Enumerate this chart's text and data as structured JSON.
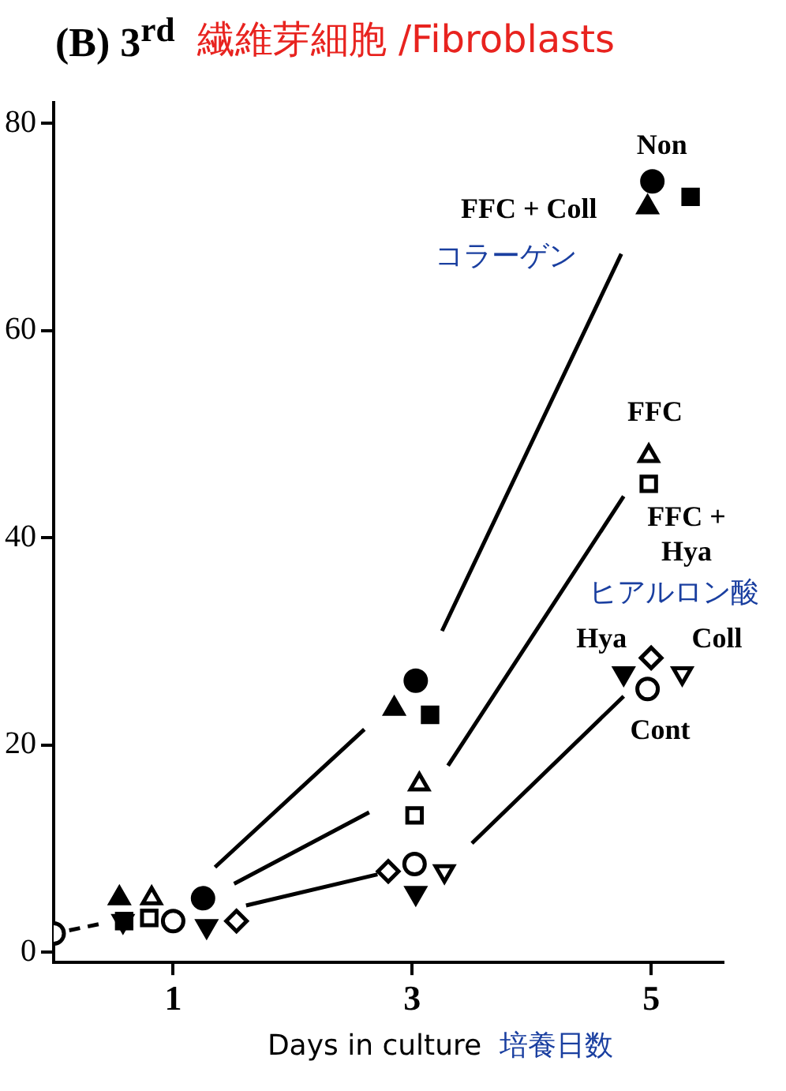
{
  "chart_data": {
    "type": "scatter",
    "title": "(B) 3$^{rd}$",
    "subtitle": "繊維芽細胞 /Fibroblasts",
    "xlabel": "Days in culture  培養日数",
    "xlim": [
      0,
      5.6
    ],
    "xticks": [
      1,
      3,
      5
    ],
    "ylim": [
      -1,
      82
    ],
    "yticks": [
      0,
      20,
      40,
      60,
      80
    ],
    "grid": false,
    "legend": false,
    "series": [
      {
        "type": "scatter",
        "name": "Non",
        "marker": "circle",
        "color": "#000000",
        "x": [
          1.25,
          3.03,
          5.01
        ],
        "values": [
          5.2,
          26.2,
          74.4
        ]
      },
      {
        "type": "scatter",
        "name": "FFC + Coll",
        "marker": "triangle",
        "color": "#000000",
        "x": [
          0.55,
          2.85,
          4.97
        ],
        "values": [
          5.2,
          23.5,
          71.9
        ]
      },
      {
        "type": "scatter",
        "marker": "square",
        "color": "#000000",
        "x": [
          0.59,
          3.15,
          5.33
        ],
        "values": [
          3.0,
          22.9,
          72.9
        ]
      },
      {
        "type": "scatter",
        "name": "FFC",
        "marker": "triangle-open",
        "color": "#000000",
        "x": [
          0.82,
          3.06,
          4.98
        ],
        "values": [
          5.2,
          16.2,
          47.9
        ]
      },
      {
        "type": "scatter",
        "name": "FFC + Hya",
        "marker": "square-open",
        "color": "#000000",
        "x": [
          0.8,
          3.02,
          4.98
        ],
        "values": [
          3.3,
          13.2,
          45.2
        ]
      },
      {
        "type": "scatter",
        "name": "Hya",
        "marker": "triangle-down",
        "color": "#000000",
        "x": [
          1.28,
          3.03,
          4.77
        ],
        "values": [
          2.5,
          5.7,
          26.9
        ]
      },
      {
        "type": "scatter",
        "marker": "diamond-open",
        "color": "#000000",
        "x": [
          1.53,
          2.8,
          5.0
        ],
        "values": [
          3.0,
          7.8,
          28.4
        ]
      },
      {
        "type": "scatter",
        "name": "Coll",
        "marker": "triangle-down-open",
        "color": "#000000",
        "x": [
          0.58,
          3.27,
          5.26
        ],
        "values": [
          3.0,
          7.8,
          26.9
        ]
      },
      {
        "type": "scatter",
        "name": "Cont",
        "marker": "circle-open",
        "color": "#000000",
        "x": [
          0,
          1.0,
          3.02,
          4.97
        ],
        "values": [
          1.8,
          3.0,
          8.5,
          25.4
        ]
      },
      {
        "type": "line",
        "line_style": "solid",
        "color": "#000000",
        "x": [
          1.35,
          2.6,
          2.9,
          3.25,
          4.75
        ],
        "values": [
          8.2,
          21.5,
          null,
          31,
          67.4
        ]
      },
      {
        "type": "line",
        "line_style": "solid",
        "color": "#000000",
        "x": [
          1.51,
          2.64,
          2.9,
          3.3,
          4.77
        ],
        "values": [
          6.6,
          13.5,
          null,
          18,
          44.0
        ]
      },
      {
        "type": "line",
        "line_style": "solid",
        "color": "#000000",
        "x": [
          1.61,
          2.71,
          3.0,
          3.5,
          4.77
        ],
        "values": [
          4.5,
          7.5,
          null,
          10.5,
          24.7
        ]
      },
      {
        "type": "line",
        "line_style": "dashed",
        "color": "#000000",
        "x": [
          0.13,
          0.38
        ],
        "values": [
          2.1,
          2.7
        ]
      }
    ],
    "annotations": [
      "コラーゲン",
      "ヒアルロン酸"
    ]
  }
}
